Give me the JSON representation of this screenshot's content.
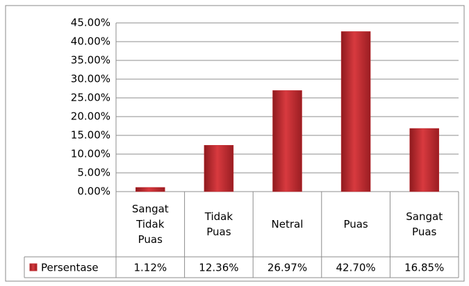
{
  "chart_data": {
    "type": "bar",
    "categories": [
      "Sangat Tidak Puas",
      "Tidak Puas",
      "Netral",
      "Puas",
      "Sangat Puas"
    ],
    "series": [
      {
        "name": "Persentase",
        "color": "#c0282d",
        "values": [
          1.12,
          12.36,
          26.97,
          42.7,
          16.85
        ],
        "value_labels": [
          "1.12%",
          "12.36%",
          "26.97%",
          "42.70%",
          "16.85%"
        ]
      }
    ],
    "ylim": [
      0,
      45
    ],
    "yticks": [
      {
        "value": 0,
        "label": "0.00%"
      },
      {
        "value": 5,
        "label": "5.00%"
      },
      {
        "value": 10,
        "label": "10.00%"
      },
      {
        "value": 15,
        "label": "15.00%"
      },
      {
        "value": 20,
        "label": "20.00%"
      },
      {
        "value": 25,
        "label": "25.00%"
      },
      {
        "value": 30,
        "label": "30.00%"
      },
      {
        "value": 35,
        "label": "35.00%"
      },
      {
        "value": 40,
        "label": "40.00%"
      },
      {
        "value": 45,
        "label": "45.00%"
      }
    ],
    "grid": true,
    "data_table": true
  }
}
